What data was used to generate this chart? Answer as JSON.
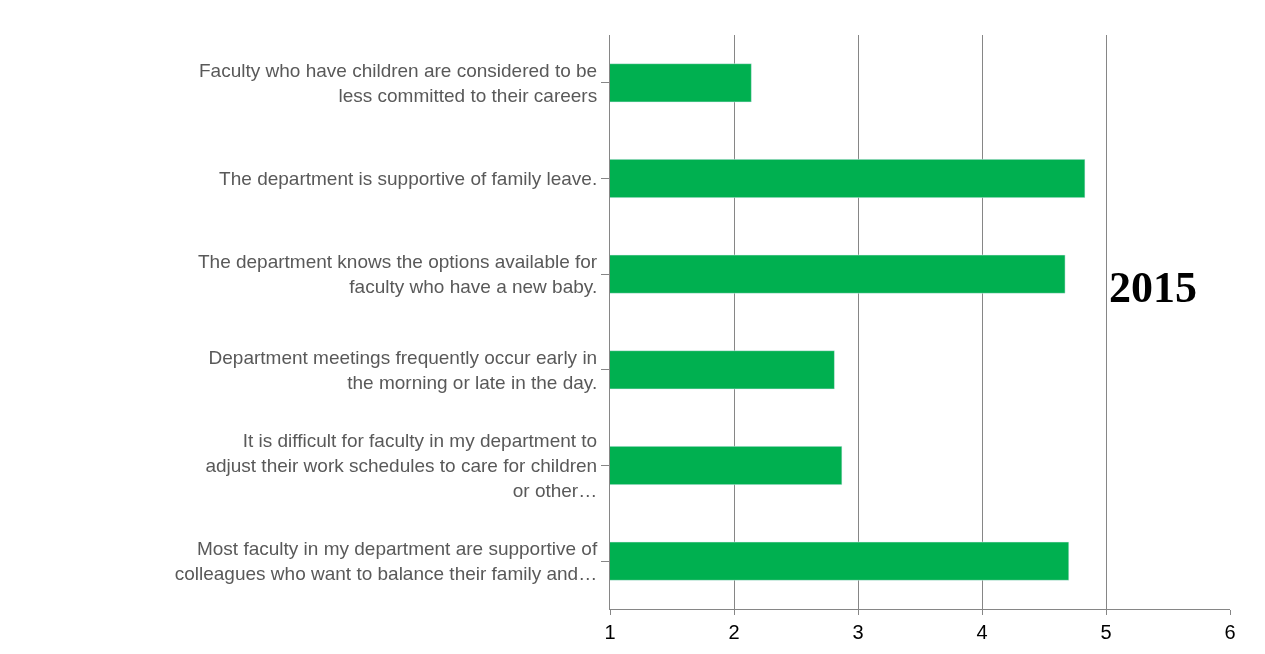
{
  "chart_data": {
    "type": "bar",
    "orientation": "horizontal",
    "categories": [
      "Faculty who have children are considered to be less committed to their careers",
      "The department is supportive of family leave.",
      "The department knows the options available for faculty who have a new baby.",
      "Department meetings frequently occur early in the morning or late in the day.",
      "It is difficult for faculty in my department to adjust their work schedules to care for children or other…",
      "Most faculty in my department are supportive of colleagues who want to balance their family and…"
    ],
    "values": [
      2.14,
      4.83,
      4.67,
      2.81,
      2.87,
      4.7
    ],
    "color": "#00b050",
    "xlim": [
      1,
      6
    ],
    "xticks": [
      1,
      2,
      3,
      4,
      5,
      6
    ],
    "grid": "x",
    "legend": false,
    "annotations": [
      "2015"
    ]
  }
}
